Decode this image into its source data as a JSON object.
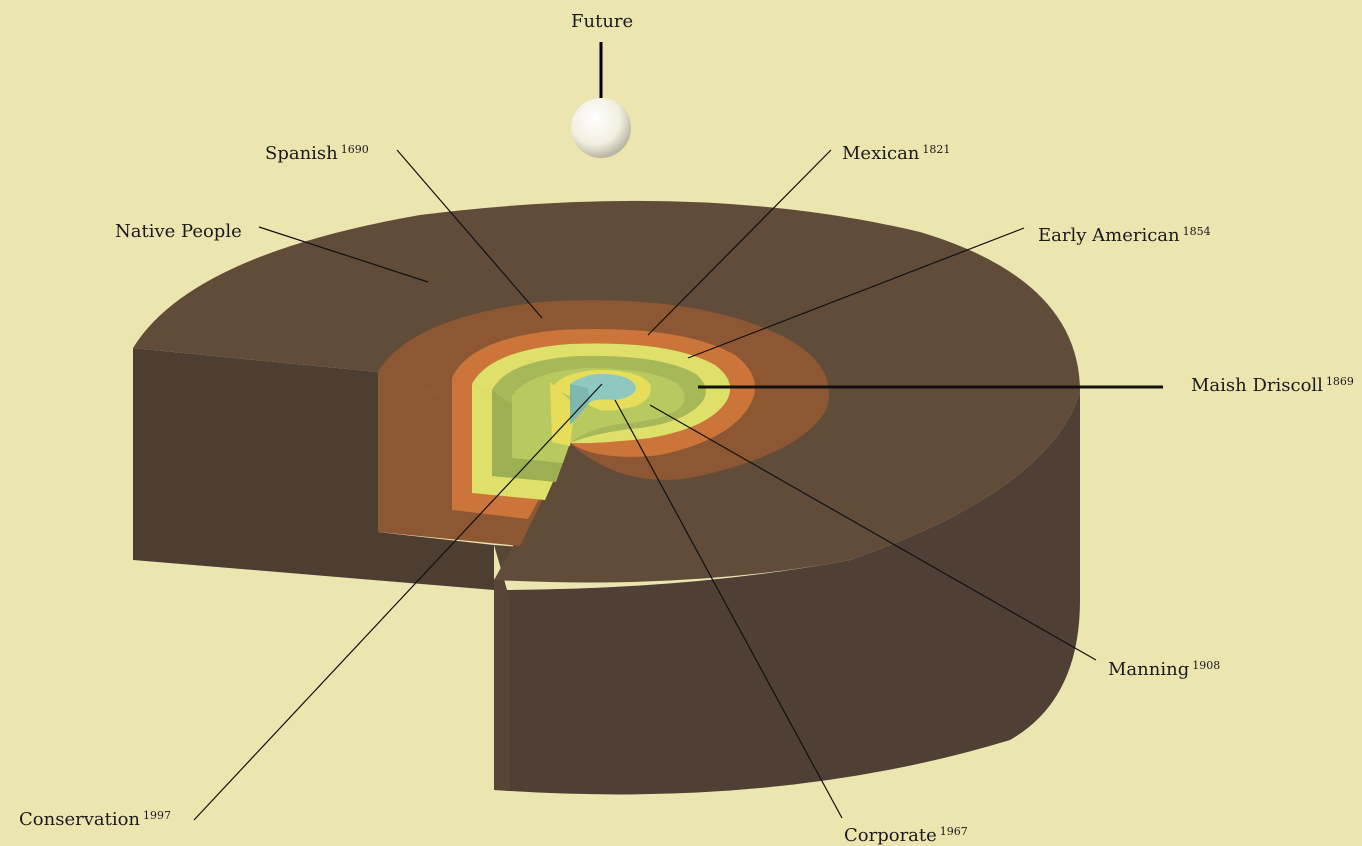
{
  "colors": {
    "background": "#ebe5b0",
    "native_top": "#614c3a",
    "native_side": "#503f34",
    "spanish": "#8e5733",
    "mexican": "#cc753a",
    "early_american": "#dfe06a",
    "maish_driscoll": "#a7b858",
    "manning": "#b8c95f",
    "corporate": "#e6de5a",
    "conservation": "#8ec8bf",
    "future_sphere": "#f6f3e8"
  },
  "labels": {
    "future": {
      "text": "Future",
      "year": ""
    },
    "spanish": {
      "text": "Spanish",
      "year": "1690"
    },
    "mexican": {
      "text": "Mexican",
      "year": "1821"
    },
    "native_people": {
      "text": "Native People",
      "year": ""
    },
    "early_american": {
      "text": "Early American",
      "year": "1854"
    },
    "maish_driscoll": {
      "text": "Maish Driscoll",
      "year": "1869"
    },
    "manning": {
      "text": "Manning",
      "year": "1908"
    },
    "conservation": {
      "text": "Conservation",
      "year": "1997"
    },
    "corporate": {
      "text": "Corporate",
      "year": "1967"
    }
  }
}
